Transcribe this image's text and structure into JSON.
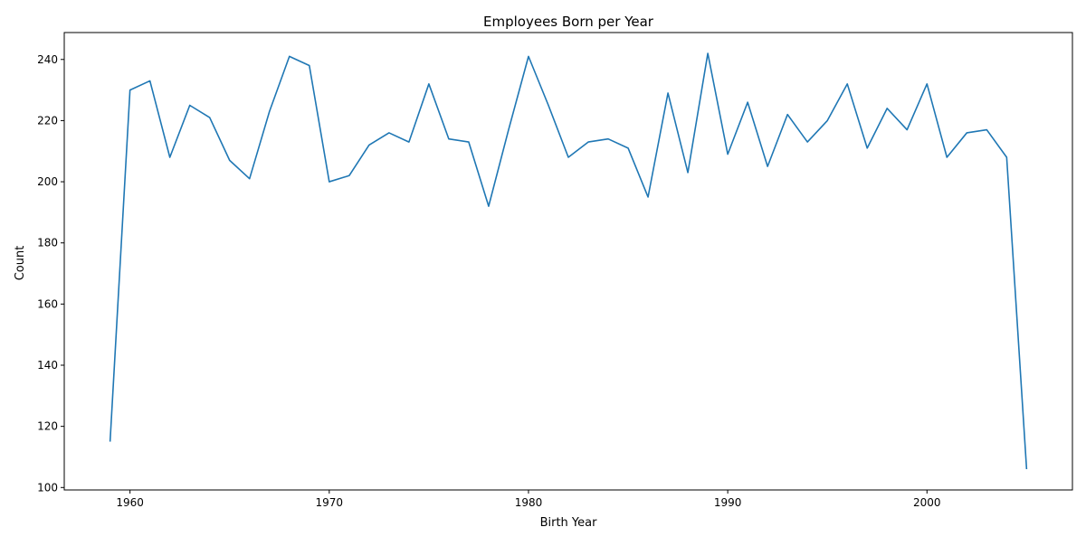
{
  "chart_data": {
    "type": "line",
    "title": "Employees Born per Year",
    "xlabel": "Birth Year",
    "ylabel": "Count",
    "xlim": [
      1956.7,
      2007.3
    ],
    "ylim": [
      99.2,
      248.8
    ],
    "xticks": [
      1960,
      1970,
      1980,
      1990,
      2000
    ],
    "yticks": [
      100,
      120,
      140,
      160,
      180,
      200,
      220,
      240
    ],
    "grid": false,
    "legend": "none",
    "line_color": "#1f77b4",
    "x": [
      1959,
      1960,
      1961,
      1962,
      1963,
      1964,
      1965,
      1966,
      1967,
      1968,
      1969,
      1970,
      1971,
      1972,
      1973,
      1974,
      1975,
      1976,
      1977,
      1978,
      1979,
      1980,
      1981,
      1982,
      1983,
      1984,
      1985,
      1986,
      1987,
      1988,
      1989,
      1990,
      1991,
      1992,
      1993,
      1994,
      1995,
      1996,
      1997,
      1998,
      1999,
      2000,
      2001,
      2002,
      2003,
      2004,
      2005
    ],
    "series": [
      {
        "values": [
          115,
          230,
          233,
          208,
          225,
          221,
          207,
          201,
          223,
          241,
          238,
          200,
          202,
          212,
          216,
          213,
          232,
          214,
          213,
          192,
          217,
          241,
          225,
          208,
          213,
          214,
          211,
          195,
          229,
          203,
          242,
          209,
          226,
          205,
          222,
          213,
          220,
          232,
          211,
          224,
          217,
          232,
          208,
          216,
          217,
          208,
          106
        ]
      }
    ]
  }
}
